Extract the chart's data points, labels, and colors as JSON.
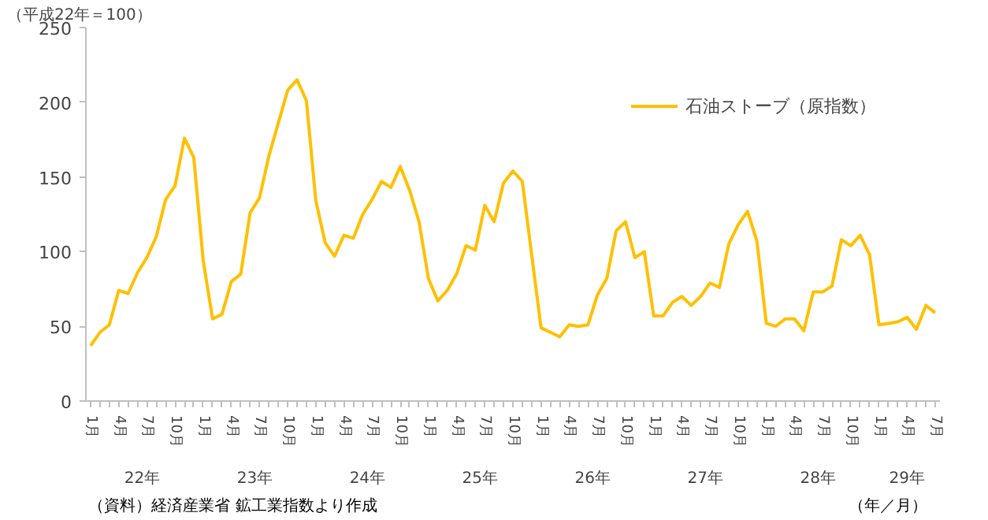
{
  "chart_data": {
    "type": "line",
    "ylabel": "（平成22年＝100）",
    "xlabel": "（年／月）",
    "categories": [
      "1月",
      null,
      null,
      "4月",
      null,
      null,
      "7月",
      null,
      null,
      "10月",
      null,
      null,
      "1月",
      null,
      null,
      "4月",
      null,
      null,
      "7月",
      null,
      null,
      "10月",
      null,
      null,
      "1月",
      null,
      null,
      "4月",
      null,
      null,
      "7月",
      null,
      null,
      "10月",
      null,
      null,
      "1月",
      null,
      null,
      "4月",
      null,
      null,
      "7月",
      null,
      null,
      "10月",
      null,
      null,
      "1月",
      null,
      null,
      "4月",
      null,
      null,
      "7月",
      null,
      null,
      "10月",
      null,
      null,
      "1月",
      null,
      null,
      "4月",
      null,
      null,
      "7月",
      null,
      null,
      "10月",
      null,
      null,
      "1月",
      null,
      null,
      "4月",
      null,
      null,
      "7月",
      null,
      null,
      "10月",
      null,
      null,
      "1月",
      null,
      null,
      "4月",
      null,
      null,
      "7月"
    ],
    "series": [
      {
        "name": "石油ストーブ（原指数）",
        "color": "#ffc000",
        "values": [
          37,
          46,
          51,
          74,
          72,
          86,
          96,
          110,
          135,
          144,
          176,
          163,
          94,
          55,
          58,
          80,
          85,
          126,
          136,
          164,
          186,
          208,
          215,
          201,
          134,
          106,
          97,
          111,
          109,
          125,
          135,
          147,
          143,
          157,
          141,
          120,
          82,
          67,
          74,
          85,
          104,
          101,
          131,
          120,
          146,
          154,
          147,
          98,
          49,
          46,
          43,
          51,
          50,
          51,
          71,
          82,
          114,
          120,
          96,
          100,
          57,
          57,
          66,
          70,
          64,
          70,
          79,
          76,
          105,
          118,
          127,
          107,
          52,
          50,
          55,
          55,
          47,
          73,
          73,
          77,
          108,
          104,
          111,
          98,
          51,
          52,
          53,
          56,
          48,
          64,
          59
        ]
      }
    ],
    "ylim": [
      0,
      250
    ],
    "yticks": [
      0,
      50,
      100,
      150,
      200,
      250
    ],
    "grid": false,
    "legend": "top right",
    "annotations": [
      "22年",
      "23年",
      "24年",
      "25年",
      "26年",
      "27年",
      "28年",
      "29年",
      "（資料）経済産業省 鉱工業指数より作成"
    ]
  }
}
